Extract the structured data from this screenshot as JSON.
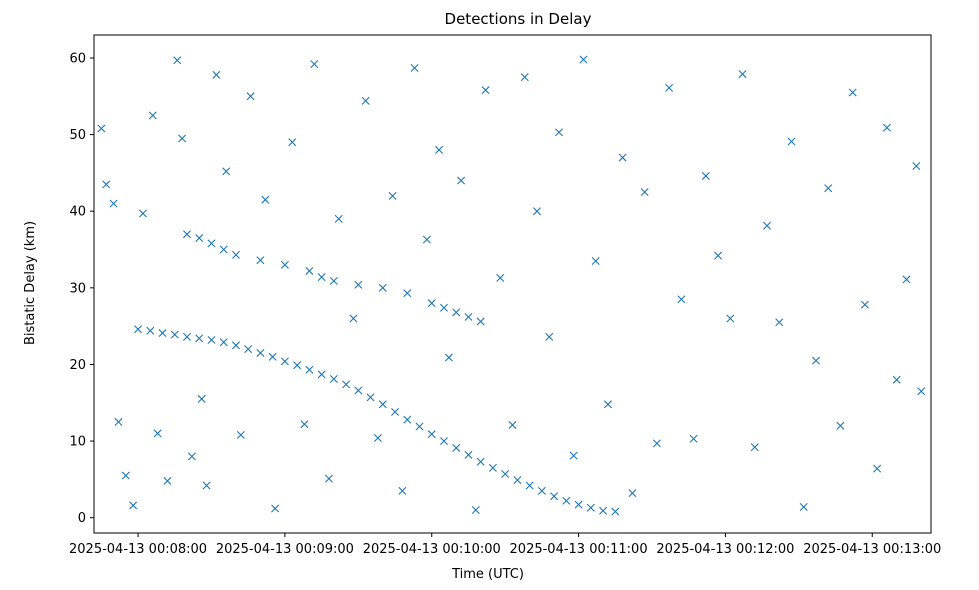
{
  "chart_data": {
    "type": "scatter",
    "title": "Detections in Delay",
    "xlabel": "Time (UTC)",
    "ylabel": "Bistatic Delay (km)",
    "x_unit": "time",
    "xlim": [
      "2025-04-13 00:07:42",
      "2025-04-13 00:13:24"
    ],
    "ylim": [
      -2,
      63
    ],
    "xticks": [
      "2025-04-13 00:08:00",
      "2025-04-13 00:09:00",
      "2025-04-13 00:10:00",
      "2025-04-13 00:11:00",
      "2025-04-13 00:12:00",
      "2025-04-13 00:13:00"
    ],
    "yticks": [
      0,
      10,
      20,
      30,
      40,
      50,
      60
    ],
    "marker": "x",
    "color": "#1f77b4",
    "grid": false,
    "legend": "none",
    "series": [
      {
        "points": [
          [
            "2025-04-13 00:08:00",
            24.6
          ],
          [
            "2025-04-13 00:08:05",
            24.4
          ],
          [
            "2025-04-13 00:08:10",
            24.1
          ],
          [
            "2025-04-13 00:08:15",
            23.9
          ],
          [
            "2025-04-13 00:08:20",
            23.6
          ],
          [
            "2025-04-13 00:08:25",
            23.4
          ],
          [
            "2025-04-13 00:08:30",
            23.2
          ],
          [
            "2025-04-13 00:08:35",
            22.9
          ],
          [
            "2025-04-13 00:08:40",
            22.5
          ],
          [
            "2025-04-13 00:08:45",
            22.0
          ],
          [
            "2025-04-13 00:08:50",
            21.5
          ],
          [
            "2025-04-13 00:08:55",
            21.0
          ],
          [
            "2025-04-13 00:09:00",
            20.4
          ],
          [
            "2025-04-13 00:09:05",
            19.9
          ],
          [
            "2025-04-13 00:09:10",
            19.3
          ],
          [
            "2025-04-13 00:09:15",
            18.7
          ],
          [
            "2025-04-13 00:09:20",
            18.1
          ],
          [
            "2025-04-13 00:09:25",
            17.4
          ],
          [
            "2025-04-13 00:09:30",
            16.6
          ],
          [
            "2025-04-13 00:09:35",
            15.7
          ],
          [
            "2025-04-13 00:09:40",
            14.8
          ],
          [
            "2025-04-13 00:09:45",
            13.8
          ],
          [
            "2025-04-13 00:09:50",
            12.8
          ],
          [
            "2025-04-13 00:09:55",
            11.9
          ],
          [
            "2025-04-13 00:10:00",
            10.9
          ],
          [
            "2025-04-13 00:10:05",
            10.0
          ],
          [
            "2025-04-13 00:10:10",
            9.1
          ],
          [
            "2025-04-13 00:10:15",
            8.2
          ],
          [
            "2025-04-13 00:10:20",
            7.3
          ],
          [
            "2025-04-13 00:10:25",
            6.5
          ],
          [
            "2025-04-13 00:10:30",
            5.7
          ],
          [
            "2025-04-13 00:10:35",
            4.9
          ],
          [
            "2025-04-13 00:10:40",
            4.2
          ],
          [
            "2025-04-13 00:10:45",
            3.5
          ],
          [
            "2025-04-13 00:10:50",
            2.8
          ],
          [
            "2025-04-13 00:10:55",
            2.2
          ],
          [
            "2025-04-13 00:11:00",
            1.7
          ],
          [
            "2025-04-13 00:11:05",
            1.3
          ],
          [
            "2025-04-13 00:11:10",
            0.9
          ],
          [
            "2025-04-13 00:11:15",
            0.8
          ],
          [
            "2025-04-13 00:08:20",
            37.0
          ],
          [
            "2025-04-13 00:08:25",
            36.5
          ],
          [
            "2025-04-13 00:08:30",
            35.8
          ],
          [
            "2025-04-13 00:08:35",
            35.0
          ],
          [
            "2025-04-13 00:08:40",
            34.3
          ],
          [
            "2025-04-13 00:08:50",
            33.6
          ],
          [
            "2025-04-13 00:09:00",
            33.0
          ],
          [
            "2025-04-13 00:09:10",
            32.2
          ],
          [
            "2025-04-13 00:09:15",
            31.4
          ],
          [
            "2025-04-13 00:09:20",
            30.9
          ],
          [
            "2025-04-13 00:09:30",
            30.4
          ],
          [
            "2025-04-13 00:09:40",
            30.0
          ],
          [
            "2025-04-13 00:09:50",
            29.3
          ],
          [
            "2025-04-13 00:10:00",
            28.0
          ],
          [
            "2025-04-13 00:10:05",
            27.4
          ],
          [
            "2025-04-13 00:10:10",
            26.8
          ],
          [
            "2025-04-13 00:10:15",
            26.2
          ],
          [
            "2025-04-13 00:10:20",
            25.6
          ],
          [
            "2025-04-13 00:07:45",
            50.8
          ],
          [
            "2025-04-13 00:07:47",
            43.5
          ],
          [
            "2025-04-13 00:07:50",
            41.0
          ],
          [
            "2025-04-13 00:07:52",
            12.5
          ],
          [
            "2025-04-13 00:07:55",
            5.5
          ],
          [
            "2025-04-13 00:07:58",
            1.6
          ],
          [
            "2025-04-13 00:08:02",
            39.7
          ],
          [
            "2025-04-13 00:08:06",
            52.5
          ],
          [
            "2025-04-13 00:08:08",
            11.0
          ],
          [
            "2025-04-13 00:08:12",
            4.8
          ],
          [
            "2025-04-13 00:08:16",
            59.7
          ],
          [
            "2025-04-13 00:08:18",
            49.5
          ],
          [
            "2025-04-13 00:08:22",
            8.0
          ],
          [
            "2025-04-13 00:08:26",
            15.5
          ],
          [
            "2025-04-13 00:08:28",
            4.2
          ],
          [
            "2025-04-13 00:08:32",
            57.8
          ],
          [
            "2025-04-13 00:08:36",
            45.2
          ],
          [
            "2025-04-13 00:08:42",
            10.8
          ],
          [
            "2025-04-13 00:08:46",
            55.0
          ],
          [
            "2025-04-13 00:08:52",
            41.5
          ],
          [
            "2025-04-13 00:08:56",
            1.2
          ],
          [
            "2025-04-13 00:09:03",
            49.0
          ],
          [
            "2025-04-13 00:09:08",
            12.2
          ],
          [
            "2025-04-13 00:09:12",
            59.2
          ],
          [
            "2025-04-13 00:09:18",
            5.1
          ],
          [
            "2025-04-13 00:09:22",
            39.0
          ],
          [
            "2025-04-13 00:09:28",
            26.0
          ],
          [
            "2025-04-13 00:09:33",
            54.4
          ],
          [
            "2025-04-13 00:09:38",
            10.4
          ],
          [
            "2025-04-13 00:09:44",
            42.0
          ],
          [
            "2025-04-13 00:09:48",
            3.5
          ],
          [
            "2025-04-13 00:09:53",
            58.7
          ],
          [
            "2025-04-13 00:09:58",
            36.3
          ],
          [
            "2025-04-13 00:10:03",
            48.0
          ],
          [
            "2025-04-13 00:10:07",
            20.9
          ],
          [
            "2025-04-13 00:10:12",
            44.0
          ],
          [
            "2025-04-13 00:10:18",
            1.0
          ],
          [
            "2025-04-13 00:10:22",
            55.8
          ],
          [
            "2025-04-13 00:10:28",
            31.3
          ],
          [
            "2025-04-13 00:10:33",
            12.1
          ],
          [
            "2025-04-13 00:10:38",
            57.5
          ],
          [
            "2025-04-13 00:10:43",
            40.0
          ],
          [
            "2025-04-13 00:10:48",
            23.6
          ],
          [
            "2025-04-13 00:10:52",
            50.3
          ],
          [
            "2025-04-13 00:10:58",
            8.1
          ],
          [
            "2025-04-13 00:11:02",
            59.8
          ],
          [
            "2025-04-13 00:11:07",
            33.5
          ],
          [
            "2025-04-13 00:11:12",
            14.8
          ],
          [
            "2025-04-13 00:11:18",
            47.0
          ],
          [
            "2025-04-13 00:11:22",
            3.2
          ],
          [
            "2025-04-13 00:11:27",
            42.5
          ],
          [
            "2025-04-13 00:11:32",
            9.7
          ],
          [
            "2025-04-13 00:11:37",
            56.1
          ],
          [
            "2025-04-13 00:11:42",
            28.5
          ],
          [
            "2025-04-13 00:11:47",
            10.3
          ],
          [
            "2025-04-13 00:11:52",
            44.6
          ],
          [
            "2025-04-13 00:11:57",
            34.2
          ],
          [
            "2025-04-13 00:12:02",
            26.0
          ],
          [
            "2025-04-13 00:12:07",
            57.9
          ],
          [
            "2025-04-13 00:12:12",
            9.2
          ],
          [
            "2025-04-13 00:12:17",
            38.1
          ],
          [
            "2025-04-13 00:12:22",
            25.5
          ],
          [
            "2025-04-13 00:12:27",
            49.1
          ],
          [
            "2025-04-13 00:12:32",
            1.4
          ],
          [
            "2025-04-13 00:12:37",
            20.5
          ],
          [
            "2025-04-13 00:12:42",
            43.0
          ],
          [
            "2025-04-13 00:12:47",
            12.0
          ],
          [
            "2025-04-13 00:12:52",
            55.5
          ],
          [
            "2025-04-13 00:12:57",
            27.8
          ],
          [
            "2025-04-13 00:13:02",
            6.4
          ],
          [
            "2025-04-13 00:13:06",
            50.9
          ],
          [
            "2025-04-13 00:13:10",
            18.0
          ],
          [
            "2025-04-13 00:13:14",
            31.1
          ],
          [
            "2025-04-13 00:13:18",
            45.9
          ],
          [
            "2025-04-13 00:13:20",
            16.5
          ]
        ]
      }
    ]
  }
}
